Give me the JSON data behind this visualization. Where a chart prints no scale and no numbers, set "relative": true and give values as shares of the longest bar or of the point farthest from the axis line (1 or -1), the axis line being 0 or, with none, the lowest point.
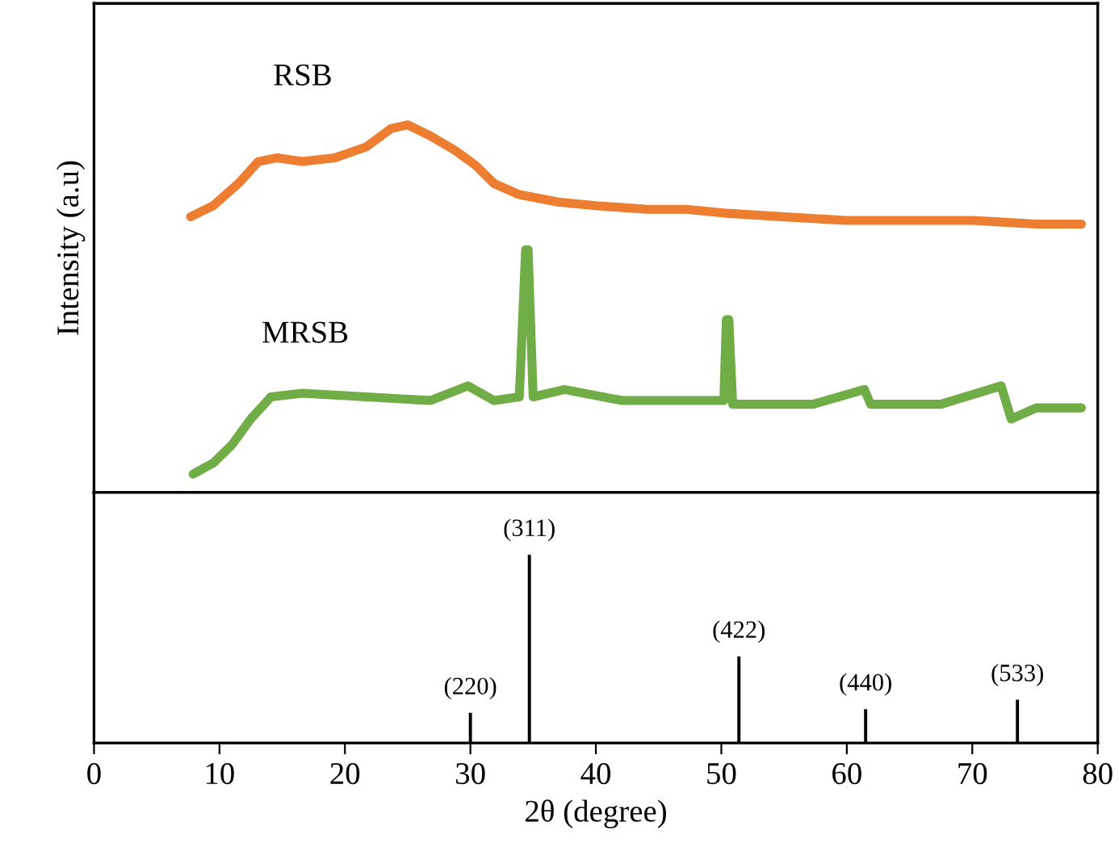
{
  "chart_data": [
    {
      "type": "line",
      "relative": true,
      "ylabel": "Intensity (a.u)",
      "xlim": [
        0,
        80
      ],
      "xticks": [
        0,
        10,
        20,
        30,
        40,
        50,
        60,
        70,
        80
      ],
      "tick_labels": false,
      "series": [
        {
          "name": "RSB",
          "color": "#ed7d31",
          "x": [
            7.7,
            9.5,
            11.5,
            13.1,
            14.6,
            16.6,
            19.2,
            21.7,
            23.7,
            25.0,
            26.8,
            28.8,
            30.4,
            31.9,
            33.9,
            37.0,
            40.0,
            44.1,
            47.2,
            50.2,
            54.8,
            59.9,
            65.0,
            70.1,
            75.1,
            78.7
          ],
          "values": [
            0.75,
            0.78,
            0.84,
            0.9,
            0.91,
            0.9,
            0.91,
            0.94,
            0.99,
            1.0,
            0.97,
            0.93,
            0.89,
            0.84,
            0.81,
            0.79,
            0.78,
            0.77,
            0.77,
            0.76,
            0.75,
            0.74,
            0.74,
            0.74,
            0.73,
            0.73
          ]
        },
        {
          "name": "MRSB",
          "color": "#70ad47",
          "x": [
            7.9,
            9.5,
            11.0,
            12.5,
            14.1,
            16.6,
            21.7,
            26.8,
            29.8,
            31.9,
            33.9,
            34.4,
            34.6,
            35.0,
            37.5,
            42.1,
            47.2,
            50.2,
            50.4,
            50.6,
            50.9,
            57.3,
            61.4,
            61.9,
            67.5,
            72.3,
            73.1,
            75.1,
            78.7
          ],
          "values": [
            0.05,
            0.08,
            0.13,
            0.2,
            0.26,
            0.27,
            0.26,
            0.25,
            0.29,
            0.25,
            0.26,
            0.66,
            0.66,
            0.26,
            0.28,
            0.25,
            0.25,
            0.25,
            0.47,
            0.47,
            0.24,
            0.24,
            0.28,
            0.24,
            0.24,
            0.29,
            0.2,
            0.23,
            0.23
          ]
        }
      ]
    },
    {
      "type": "bar",
      "relative": true,
      "xlabel": "2θ (degree)",
      "xlim": [
        0,
        80
      ],
      "xticks": [
        0,
        10,
        20,
        30,
        40,
        50,
        60,
        70,
        80
      ],
      "tick_labels": "x",
      "x": [
        30.0,
        34.7,
        51.4,
        61.5,
        73.6
      ],
      "values": [
        0.16,
        1.0,
        0.46,
        0.18,
        0.23
      ],
      "color": "#000000",
      "annotations": [
        {
          "text": "(220)",
          "x": 30.0,
          "y": 0.16
        },
        {
          "text": "(311)",
          "x": 34.7,
          "y": 1.0
        },
        {
          "text": "(422)",
          "x": 51.4,
          "y": 0.46
        },
        {
          "text": "(440)",
          "x": 61.5,
          "y": 0.18
        },
        {
          "text": "(533)",
          "x": 73.6,
          "y": 0.23
        }
      ]
    }
  ]
}
